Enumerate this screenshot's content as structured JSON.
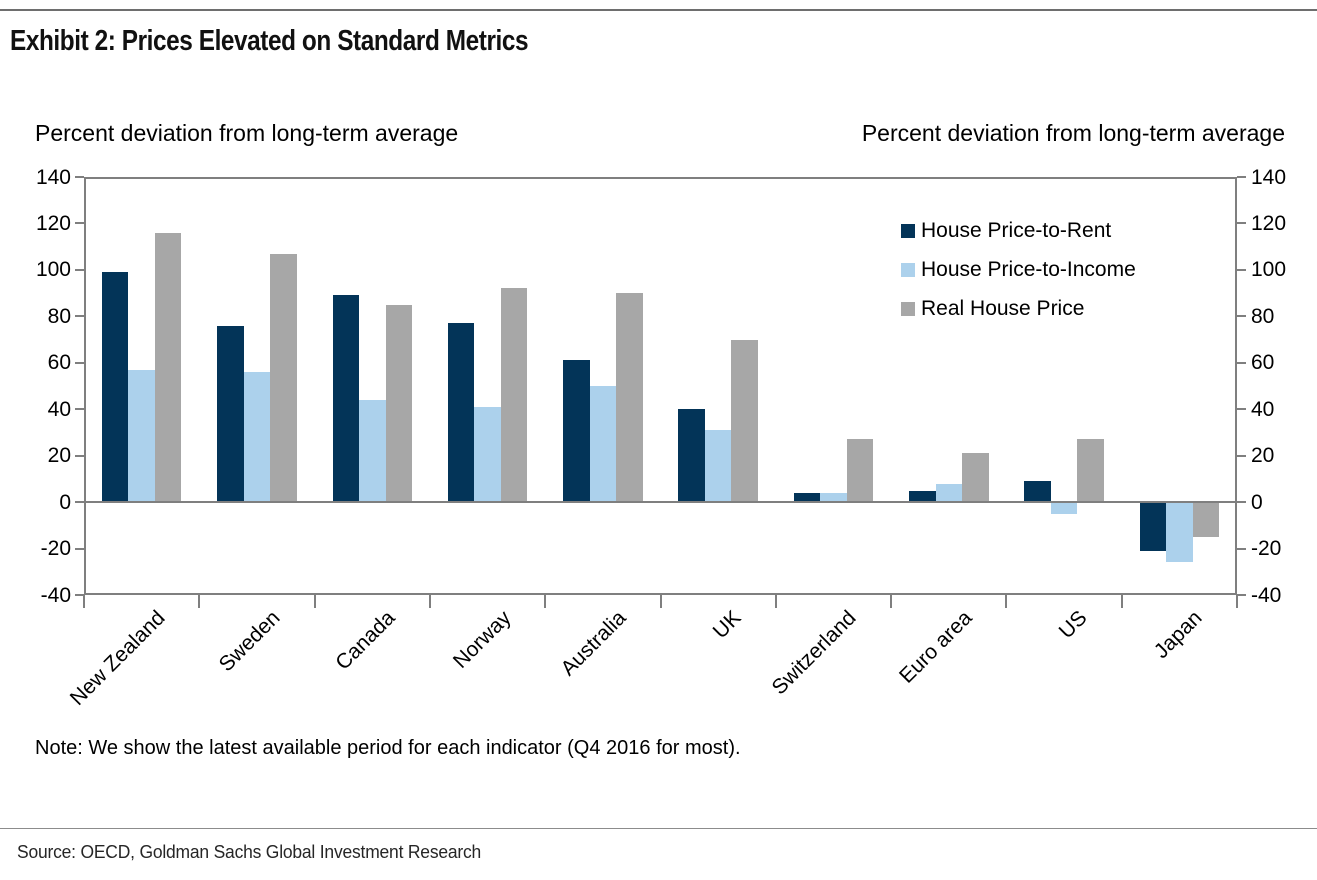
{
  "header": {
    "title": "Exhibit 2: Prices Elevated on Standard Metrics"
  },
  "chart": {
    "left_axis_caption": "Percent deviation from long-term average",
    "right_axis_caption": "Percent deviation from long-term average",
    "note": "Note: We show the latest available period for each indicator (Q4 2016 for most)."
  },
  "chart_data": {
    "type": "bar",
    "title": "Exhibit 2: Prices Elevated on Standard Metrics",
    "categories": [
      "New Zealand",
      "Sweden",
      "Canada",
      "Norway",
      "Australia",
      "UK",
      "Switzerland",
      "Euro area",
      "US",
      "Japan"
    ],
    "series": [
      {
        "name": "House Price-to-Rent",
        "color": "#033458",
        "values": [
          99,
          76,
          89,
          77,
          61,
          40,
          4,
          5,
          9,
          -21
        ]
      },
      {
        "name": "House Price-to-Income",
        "color": "#ACD1EC",
        "values": [
          57,
          56,
          44,
          41,
          50,
          31,
          4,
          8,
          -5,
          -26
        ]
      },
      {
        "name": "Real House Price",
        "color": "#A7A7A7",
        "values": [
          116,
          107,
          85,
          92,
          90,
          70,
          27,
          21,
          27,
          -15
        ]
      }
    ],
    "ylabel_left": "Percent deviation from long-term average",
    "ylabel_right": "Percent deviation from long-term average",
    "ylim": [
      -40,
      140
    ],
    "yticks": [
      140,
      120,
      100,
      80,
      60,
      40,
      20,
      0,
      -20,
      -40
    ],
    "ytick_step": 20,
    "grid": false,
    "legend_position": "upper right",
    "axis_color": "#7f7f7f"
  },
  "footer": {
    "source": "Source: OECD, Goldman Sachs Global Investment Research"
  }
}
